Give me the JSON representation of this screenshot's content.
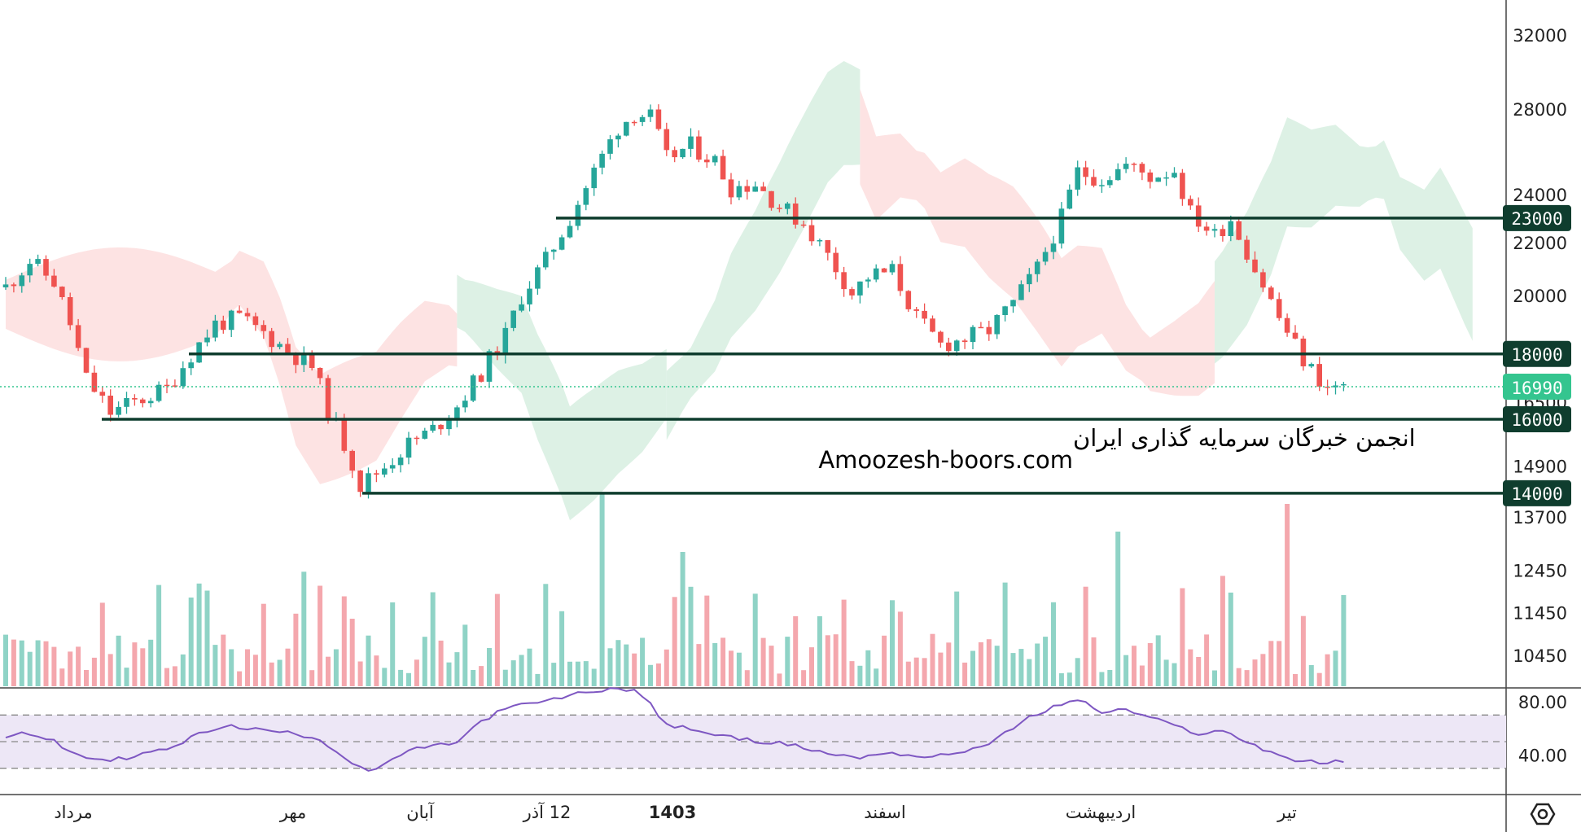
{
  "colors": {
    "up": "#26a69a",
    "down": "#ef5350",
    "vol_up": "#8fd3c6",
    "vol_down": "#f4a7ad",
    "cloud_bull": "#d9f0e2",
    "cloud_bear": "#fde0e0",
    "level_line": "#0f3d2e",
    "rsi_line": "#7e57c2",
    "rsi_band": "#ede7f6",
    "last_price": "#34c58f"
  },
  "watermark": {
    "line1": "انجمن خبرگان سرمایه گذاری ایران",
    "line2": "Amoozesh-boors.com"
  },
  "settings_icon": "gear-hexagon-icon",
  "chart_data": {
    "type": "candlestick",
    "price_scale": {
      "type": "log",
      "ticks": [
        "32000",
        "28000",
        "24000",
        "22000",
        "20000",
        "16500",
        "14900",
        "13700",
        "12450",
        "11450",
        "10450"
      ],
      "last_price": "16990"
    },
    "levels": [
      {
        "price": 23000,
        "label": "23000"
      },
      {
        "price": 18000,
        "label": "18000"
      },
      {
        "price": 16000,
        "label": "16000"
      },
      {
        "price": 14000,
        "label": "14000"
      }
    ],
    "rsi": {
      "ticks": [
        "80.00",
        "40.00"
      ],
      "band": [
        30,
        70
      ],
      "mid": 50
    },
    "time_labels": [
      {
        "text": "مرداد",
        "bold": false
      },
      {
        "text": "مهر",
        "bold": false
      },
      {
        "text": "آبان",
        "bold": false
      },
      {
        "text": "12 آذر",
        "bold": false
      },
      {
        "text": "1403",
        "bold": true
      },
      {
        "text": "اسفند",
        "bold": false
      },
      {
        "text": "اردیبهشت",
        "bold": false
      },
      {
        "text": "تیر",
        "bold": false
      }
    ],
    "price_path": [
      [
        0,
        20300
      ],
      [
        3,
        21300
      ],
      [
        6,
        20500
      ],
      [
        8,
        19000
      ],
      [
        10,
        17200
      ],
      [
        13,
        16200
      ],
      [
        15,
        16400
      ],
      [
        18,
        16700
      ],
      [
        20,
        16900
      ],
      [
        23,
        18000
      ],
      [
        26,
        19000
      ],
      [
        29,
        19200
      ],
      [
        32,
        18700
      ],
      [
        35,
        18100
      ],
      [
        38,
        17600
      ],
      [
        40,
        16300
      ],
      [
        43,
        14800
      ],
      [
        44,
        14200
      ],
      [
        47,
        14700
      ],
      [
        50,
        15300
      ],
      [
        53,
        15700
      ],
      [
        56,
        16400
      ],
      [
        59,
        17400
      ],
      [
        62,
        18600
      ],
      [
        64,
        20000
      ],
      [
        67,
        21300
      ],
      [
        70,
        23000
      ],
      [
        73,
        25000
      ],
      [
        76,
        27100
      ],
      [
        78,
        27800
      ],
      [
        80,
        27600
      ],
      [
        82,
        25600
      ],
      [
        85,
        26200
      ],
      [
        88,
        25500
      ],
      [
        90,
        24300
      ],
      [
        93,
        24500
      ],
      [
        96,
        23500
      ],
      [
        99,
        22800
      ],
      [
        102,
        21500
      ],
      [
        105,
        20100
      ],
      [
        107,
        20700
      ],
      [
        110,
        20900
      ],
      [
        113,
        19200
      ],
      [
        116,
        18300
      ],
      [
        119,
        18500
      ],
      [
        122,
        18800
      ],
      [
        125,
        19700
      ],
      [
        128,
        21000
      ],
      [
        131,
        23000
      ],
      [
        133,
        25000
      ],
      [
        136,
        24700
      ],
      [
        139,
        25300
      ],
      [
        142,
        24800
      ],
      [
        145,
        25100
      ],
      [
        147,
        23200
      ],
      [
        150,
        22300
      ],
      [
        152,
        23000
      ],
      [
        155,
        21000
      ],
      [
        158,
        19200
      ],
      [
        161,
        17800
      ],
      [
        164,
        16900
      ],
      [
        166,
        16990
      ]
    ],
    "rsi_path": [
      [
        0,
        52
      ],
      [
        2,
        58
      ],
      [
        4,
        54
      ],
      [
        6,
        50
      ],
      [
        8,
        42
      ],
      [
        10,
        38
      ],
      [
        13,
        36
      ],
      [
        15,
        38
      ],
      [
        18,
        42
      ],
      [
        21,
        46
      ],
      [
        24,
        56
      ],
      [
        27,
        62
      ],
      [
        30,
        60
      ],
      [
        33,
        58
      ],
      [
        36,
        56
      ],
      [
        39,
        52
      ],
      [
        42,
        38
      ],
      [
        45,
        28
      ],
      [
        47,
        32
      ],
      [
        50,
        44
      ],
      [
        53,
        46
      ],
      [
        56,
        50
      ],
      [
        59,
        65
      ],
      [
        61,
        72
      ],
      [
        64,
        78
      ],
      [
        67,
        80
      ],
      [
        70,
        85
      ],
      [
        73,
        88
      ],
      [
        76,
        90
      ],
      [
        78,
        89
      ],
      [
        80,
        78
      ],
      [
        82,
        62
      ],
      [
        85,
        60
      ],
      [
        88,
        55
      ],
      [
        91,
        52
      ],
      [
        94,
        50
      ],
      [
        97,
        48
      ],
      [
        100,
        44
      ],
      [
        103,
        40
      ],
      [
        106,
        38
      ],
      [
        109,
        42
      ],
      [
        112,
        40
      ],
      [
        115,
        38
      ],
      [
        118,
        42
      ],
      [
        121,
        46
      ],
      [
        124,
        56
      ],
      [
        127,
        68
      ],
      [
        130,
        76
      ],
      [
        133,
        82
      ],
      [
        136,
        72
      ],
      [
        139,
        74
      ],
      [
        142,
        68
      ],
      [
        145,
        62
      ],
      [
        148,
        56
      ],
      [
        151,
        58
      ],
      [
        154,
        50
      ],
      [
        157,
        42
      ],
      [
        160,
        36
      ],
      [
        163,
        34
      ],
      [
        166,
        35
      ]
    ]
  }
}
